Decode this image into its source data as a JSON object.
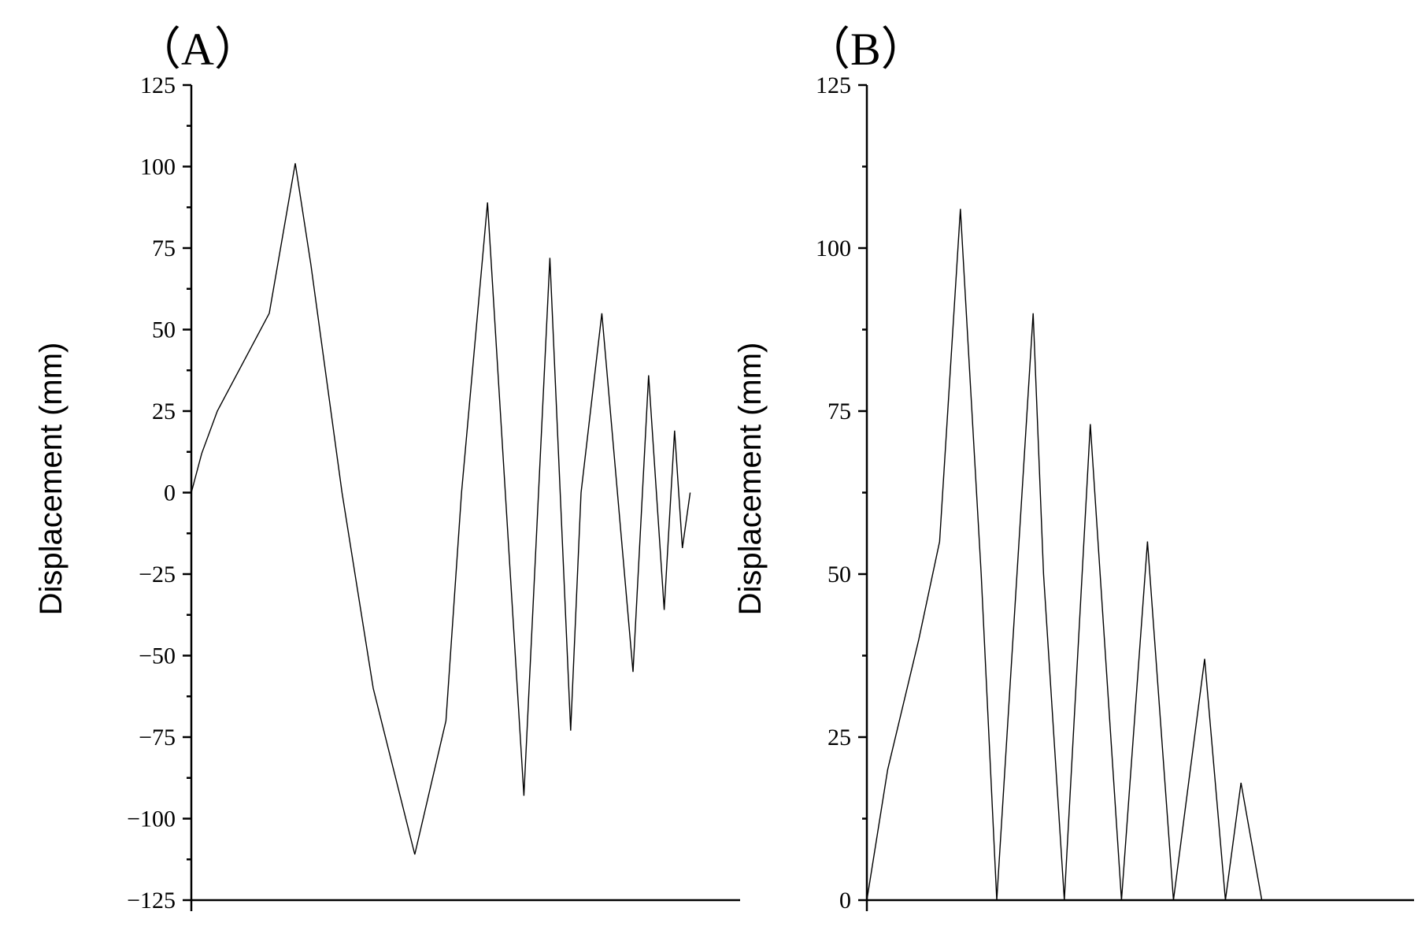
{
  "chart_data": [
    {
      "type": "line",
      "panel_label": "（A）",
      "ylabel": "Displacement (mm)",
      "xlabel": "",
      "ylim": [
        -125,
        125
      ],
      "ytick_labels": [
        "125",
        "100",
        "75",
        "50",
        "25",
        "0",
        "−25",
        "−50",
        "−75",
        "−100",
        "−125"
      ],
      "x_axis_ticks_labelled": false,
      "grid": false,
      "series": [
        {
          "color": "#000000",
          "x": [
            0,
            2,
            5,
            10,
            15,
            20,
            23,
            29,
            35,
            43,
            49,
            52,
            57,
            64,
            69,
            73,
            75,
            79,
            85,
            88,
            91,
            93,
            94.5,
            96
          ],
          "y": [
            0,
            12,
            25,
            40,
            55,
            101,
            70,
            0,
            -60,
            -111,
            -70,
            0,
            89,
            -93,
            72,
            -73,
            0,
            55,
            -55,
            36,
            -36,
            19,
            -17,
            0
          ]
        }
      ]
    },
    {
      "type": "line",
      "panel_label": "（B）",
      "ylabel": "Displacement (mm)",
      "xlabel": "",
      "ylim": [
        0,
        125
      ],
      "ytick_labels": [
        "125",
        "100",
        "75",
        "50",
        "25",
        "0"
      ],
      "x_axis_ticks_labelled": false,
      "grid": false,
      "series": [
        {
          "color": "#000000",
          "x": [
            0,
            4,
            10,
            14,
            18,
            22,
            25,
            32,
            34,
            38,
            43,
            49,
            54,
            59,
            65,
            69,
            72,
            76,
            80,
            83,
            84,
            88
          ],
          "y": [
            0,
            20,
            40,
            55,
            106,
            50,
            0,
            90,
            50,
            0,
            73,
            0,
            55,
            0,
            37,
            0,
            18,
            0,
            0,
            0,
            0,
            0
          ]
        }
      ]
    }
  ]
}
